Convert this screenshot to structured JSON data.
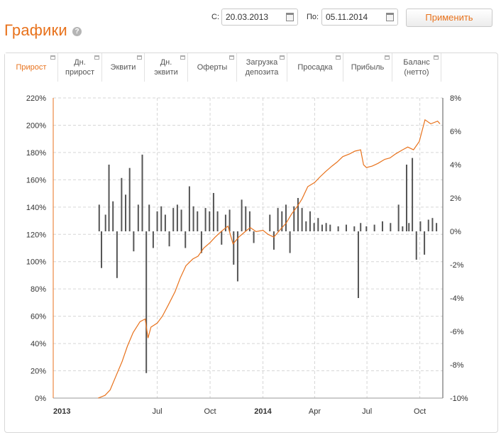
{
  "header": {
    "title": "Графики",
    "help_icon": "?",
    "from_label": "С:",
    "from_value": "20.03.2013",
    "to_label": "По:",
    "to_value": "05.11.2014",
    "apply_label": "Применить"
  },
  "tabs": [
    {
      "label": "Прирост",
      "active": true
    },
    {
      "label": "Дн.\nприрост",
      "active": false
    },
    {
      "label": "Эквити",
      "active": false
    },
    {
      "label": "Дн.\nэквити",
      "active": false
    },
    {
      "label": "Оферты",
      "active": false
    },
    {
      "label": "Загрузка\nдепозита",
      "active": false
    },
    {
      "label": "Просадка",
      "active": false
    },
    {
      "label": "Прибыль",
      "active": false
    },
    {
      "label": "Баланс\n(нетто)",
      "active": false
    }
  ],
  "colors": {
    "accent": "#e8721c",
    "line": "#e8721c",
    "bars": "#555555",
    "grid": "#d6d6d6"
  },
  "chart_data": {
    "type": "line",
    "title": "",
    "legend": "none",
    "grid": true,
    "x_ticks": [
      {
        "label": "2013",
        "date": "2013-01-01",
        "bold": true
      },
      {
        "label": "Jul",
        "date": "2013-07-01",
        "bold": false
      },
      {
        "label": "Oct",
        "date": "2013-10-01",
        "bold": false
      },
      {
        "label": "2014",
        "date": "2014-01-01",
        "bold": true
      },
      {
        "label": "Apr",
        "date": "2014-04-01",
        "bold": false
      },
      {
        "label": "Jul",
        "date": "2014-07-01",
        "bold": false
      },
      {
        "label": "Oct",
        "date": "2014-10-01",
        "bold": false
      }
    ],
    "y_left": {
      "ticks": [
        "0%",
        "20%",
        "40%",
        "60%",
        "80%",
        "100%",
        "120%",
        "140%",
        "160%",
        "180%",
        "200%",
        "220%"
      ],
      "ylim": [
        0,
        220
      ],
      "unit": "%"
    },
    "y_right": {
      "ticks": [
        "-10%",
        "-8%",
        "-6%",
        "-4%",
        "-2%",
        "0%",
        "2%",
        "4%",
        "6%",
        "8%"
      ],
      "ylim": [
        -10,
        8
      ],
      "unit": "%"
    },
    "series": [
      {
        "kind": "line",
        "axis": "left",
        "x": [
          "2013-03-20",
          "2013-04-01",
          "2013-04-10",
          "2013-04-20",
          "2013-05-01",
          "2013-05-10",
          "2013-05-20",
          "2013-06-01",
          "2013-06-10",
          "2013-06-15",
          "2013-06-20",
          "2013-07-01",
          "2013-07-10",
          "2013-07-20",
          "2013-08-01",
          "2013-08-10",
          "2013-08-20",
          "2013-09-01",
          "2013-09-10",
          "2013-09-20",
          "2013-10-01",
          "2013-10-10",
          "2013-10-20",
          "2013-11-01",
          "2013-11-10",
          "2013-11-20",
          "2013-12-01",
          "2013-12-10",
          "2013-12-20",
          "2014-01-01",
          "2014-01-10",
          "2014-01-20",
          "2014-02-01",
          "2014-02-10",
          "2014-02-20",
          "2014-03-01",
          "2014-03-10",
          "2014-03-20",
          "2014-04-01",
          "2014-04-10",
          "2014-04-20",
          "2014-05-01",
          "2014-05-10",
          "2014-05-20",
          "2014-06-01",
          "2014-06-10",
          "2014-06-20",
          "2014-06-25",
          "2014-06-30",
          "2014-07-10",
          "2014-07-20",
          "2014-08-01",
          "2014-08-10",
          "2014-08-20",
          "2014-09-01",
          "2014-09-10",
          "2014-09-20",
          "2014-09-30",
          "2014-10-10",
          "2014-10-20",
          "2014-11-01",
          "2014-11-05"
        ],
        "y": [
          0,
          2,
          6,
          16,
          27,
          38,
          48,
          56,
          58,
          44,
          52,
          55,
          60,
          68,
          78,
          88,
          97,
          102,
          104,
          110,
          114,
          118,
          122,
          126,
          113,
          118,
          122,
          125,
          122,
          123,
          120,
          118,
          124,
          128,
          135,
          140,
          146,
          155,
          158,
          162,
          166,
          170,
          173,
          177,
          179,
          181,
          182,
          171,
          169,
          170,
          172,
          175,
          176,
          179,
          182,
          184,
          182,
          188,
          204,
          201,
          203,
          201
        ]
      },
      {
        "kind": "bar",
        "axis": "right",
        "description_values": "daily growth, percent",
        "x": [
          "2013-03-22",
          "2013-03-26",
          "2013-04-02",
          "2013-04-08",
          "2013-04-15",
          "2013-04-22",
          "2013-04-30",
          "2013-05-07",
          "2013-05-14",
          "2013-05-21",
          "2013-05-29",
          "2013-06-05",
          "2013-06-12",
          "2013-06-17",
          "2013-06-24",
          "2013-07-01",
          "2013-07-08",
          "2013-07-15",
          "2013-07-22",
          "2013-07-29",
          "2013-08-05",
          "2013-08-12",
          "2013-08-19",
          "2013-08-26",
          "2013-09-02",
          "2013-09-09",
          "2013-09-16",
          "2013-09-23",
          "2013-09-30",
          "2013-10-07",
          "2013-10-14",
          "2013-10-21",
          "2013-10-28",
          "2013-11-04",
          "2013-11-11",
          "2013-11-18",
          "2013-11-25",
          "2013-12-02",
          "2013-12-09",
          "2013-12-16",
          "2014-01-13",
          "2014-01-20",
          "2014-01-27",
          "2014-02-03",
          "2014-02-10",
          "2014-02-17",
          "2014-02-24",
          "2014-03-03",
          "2014-03-10",
          "2014-03-17",
          "2014-03-24",
          "2014-03-31",
          "2014-04-07",
          "2014-04-14",
          "2014-04-21",
          "2014-04-28",
          "2014-05-12",
          "2014-05-26",
          "2014-06-09",
          "2014-06-16",
          "2014-06-20",
          "2014-06-30",
          "2014-07-14",
          "2014-07-28",
          "2014-08-11",
          "2014-08-25",
          "2014-09-01",
          "2014-09-08",
          "2014-09-12",
          "2014-09-18",
          "2014-09-25",
          "2014-10-02",
          "2014-10-09",
          "2014-10-16",
          "2014-10-23",
          "2014-10-30"
        ],
        "y": [
          1.6,
          -2.2,
          1.0,
          4.0,
          1.8,
          -2.8,
          3.2,
          2.2,
          3.8,
          -1.2,
          1.6,
          4.6,
          -8.5,
          1.6,
          -1.0,
          1.2,
          1.5,
          1.0,
          -0.9,
          1.4,
          1.6,
          1.3,
          -1.0,
          2.7,
          1.5,
          1.2,
          -1.3,
          1.4,
          1.2,
          2.3,
          1.2,
          -0.8,
          1.0,
          1.3,
          -2.0,
          -3.0,
          1.9,
          1.5,
          1.2,
          -0.7,
          1.0,
          -1.1,
          1.4,
          1.2,
          1.6,
          -1.3,
          1.5,
          2.0,
          1.4,
          0.6,
          1.2,
          0.5,
          0.8,
          0.4,
          0.5,
          0.4,
          0.3,
          0.4,
          0.3,
          -4.0,
          0.5,
          0.3,
          0.4,
          0.6,
          0.5,
          1.6,
          0.3,
          4.0,
          0.5,
          4.4,
          -1.7,
          0.6,
          -1.4,
          0.7,
          0.8,
          0.5
        ]
      }
    ]
  }
}
